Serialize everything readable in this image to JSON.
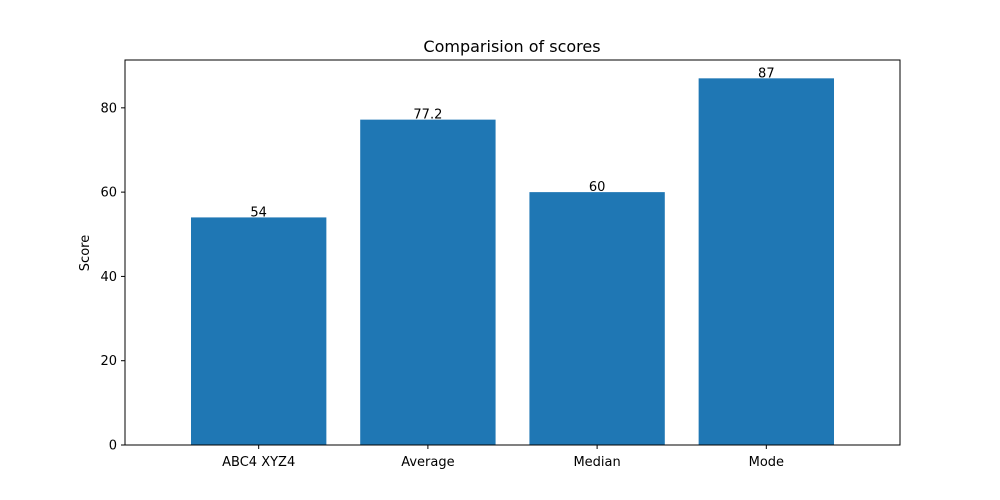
{
  "chart_data": {
    "type": "bar",
    "title": "Comparision of scores",
    "xlabel": "",
    "ylabel": "Score",
    "categories": [
      "ABC4 XYZ4",
      "Average",
      "Median",
      "Mode"
    ],
    "values": [
      54,
      77.2,
      60,
      87
    ],
    "data_labels": [
      "54",
      "77.2",
      "60",
      "87"
    ],
    "ylim": [
      0,
      91.35
    ],
    "yticks": [
      0,
      20,
      40,
      60,
      80
    ],
    "bar_color": "#1f77b4",
    "grid": false,
    "legend": "none"
  }
}
